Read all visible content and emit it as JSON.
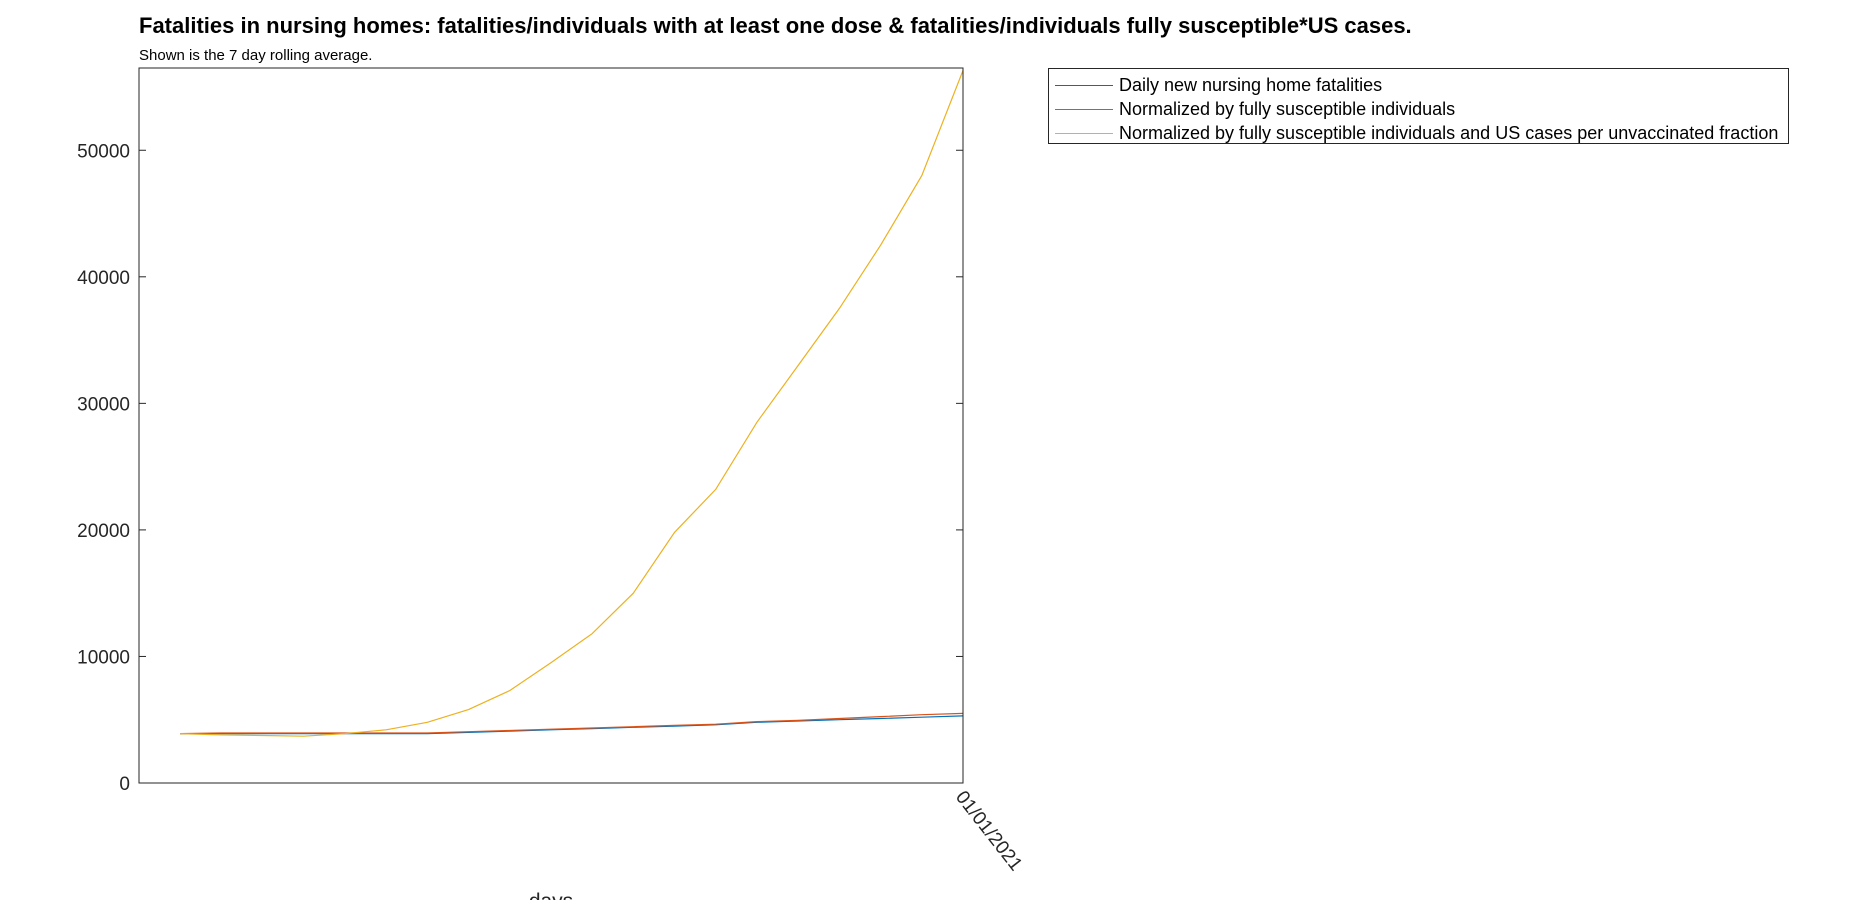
{
  "chart_data": {
    "type": "line",
    "title": "Fatalities in nursing homes: fatalities/individuals with at least one dose & fatalities/individuals fully susceptible*US cases.",
    "subtitle": "Shown is the 7 day rolling average.",
    "xlabel": "days",
    "ylabel": "",
    "x_tick_labels": [
      "01/01/2021"
    ],
    "y_ticks": [
      0,
      10000,
      20000,
      30000,
      40000,
      50000
    ],
    "ylim": [
      0,
      56500
    ],
    "grid": false,
    "legend_position": "outside-top-right",
    "x": [
      1,
      2,
      3,
      4,
      5,
      6,
      7,
      8,
      9,
      10,
      11,
      12,
      13,
      14,
      15,
      16,
      17,
      18,
      19,
      20
    ],
    "series": [
      {
        "name": "Daily new nursing home fatalities",
        "color": "#0072BD",
        "values": [
          3900,
          3900,
          3900,
          3900,
          3900,
          3900,
          3900,
          4000,
          4100,
          4200,
          4300,
          4400,
          4500,
          4600,
          4800,
          4900,
          5000,
          5100,
          5200,
          5300
        ]
      },
      {
        "name": "Normalized by fully susceptible individuals",
        "color": "#D95319",
        "values": [
          3900,
          3950,
          3950,
          3950,
          3950,
          3950,
          3950,
          4050,
          4150,
          4250,
          4350,
          4450,
          4550,
          4650,
          4850,
          4950,
          5100,
          5250,
          5400,
          5500
        ]
      },
      {
        "name": "Normalized by fully susceptible individuals and US cases per unvaccinated fraction",
        "color": "#EDB120",
        "values": [
          3900,
          3800,
          3750,
          3700,
          3900,
          4200,
          4800,
          5800,
          7300,
          9500,
          11800,
          15000,
          19800,
          23200,
          28500,
          33000,
          37500,
          42500,
          48000,
          56300
        ]
      }
    ]
  }
}
